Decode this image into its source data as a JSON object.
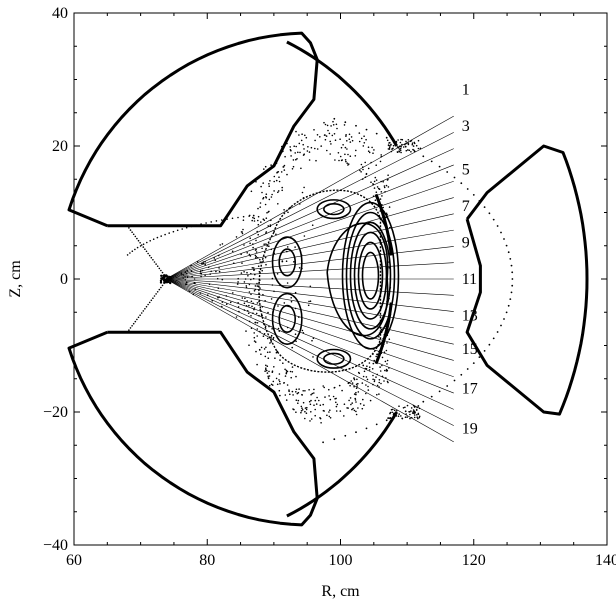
{
  "chart_data": {
    "type": "scatter",
    "title": "",
    "xlabel": "R, cm",
    "ylabel": "Z, cm",
    "xlim": [
      60,
      140
    ],
    "ylim": [
      -40,
      40
    ],
    "x_ticks": [
      "60",
      "80",
      "100",
      "120",
      "140"
    ],
    "y_ticks": [
      "-40",
      "-20",
      "0",
      "20",
      "40"
    ],
    "grid": false,
    "legend": "none",
    "chord_origin": [
      73.8,
      0
    ],
    "chord_labels": [
      {
        "label": "1",
        "ry": [
          117,
          28.5
        ]
      },
      {
        "label": "3",
        "ry": [
          117,
          23.0
        ]
      },
      {
        "label": "5",
        "ry": [
          117,
          16.5
        ]
      },
      {
        "label": "7",
        "ry": [
          117,
          11.0
        ]
      },
      {
        "label": "9",
        "ry": [
          117,
          5.5
        ]
      },
      {
        "label": "11",
        "ry": [
          117,
          0.0
        ]
      },
      {
        "label": "13",
        "ry": [
          117,
          -5.5
        ]
      },
      {
        "label": "15",
        "ry": [
          117,
          -10.5
        ]
      },
      {
        "label": "17",
        "ry": [
          117,
          -16.5
        ]
      },
      {
        "label": "19",
        "ry": [
          117,
          -22.5
        ]
      }
    ],
    "chord_count": 21,
    "chord_end_r": 117,
    "chord_end_z_range": [
      24.5,
      -24.5
    ],
    "colors": {
      "ink": "#000000"
    }
  }
}
